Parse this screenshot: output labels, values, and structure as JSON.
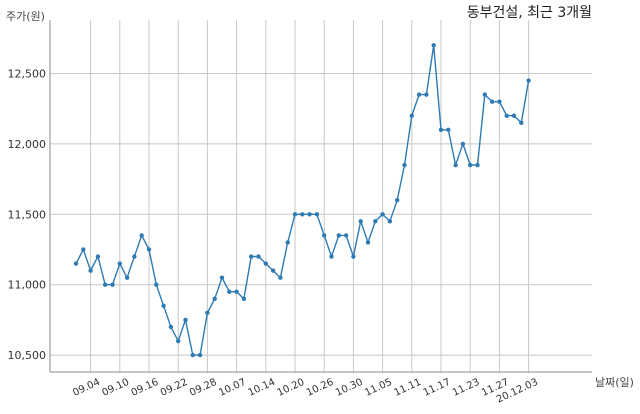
{
  "chart_data": {
    "type": "line",
    "title": "동부건설, 최근 3개월",
    "ylabel": "주가(원)",
    "xlabel": "날짜(일)",
    "ylim": [
      10380,
      12880
    ],
    "yticks": [
      10500,
      11000,
      11500,
      12000,
      12500
    ],
    "ytick_labels": [
      "10,500",
      "11,000",
      "11,500",
      "12,000",
      "12,500"
    ],
    "xtick_labels": [
      "09.04",
      "09.10",
      "09.16",
      "09.22",
      "09.28",
      "10.07",
      "10.14",
      "10.20",
      "10.26",
      "10.30",
      "11.05",
      "11.11",
      "11.17",
      "11.23",
      "11.27",
      "20.12.03"
    ],
    "xtick_index": [
      2,
      6,
      10,
      14,
      18,
      22,
      26,
      30,
      34,
      38,
      42,
      46,
      50,
      54,
      58,
      62
    ],
    "grid": true,
    "series": [
      {
        "color": "#2e7bb4",
        "values": [
          11150,
          11250,
          11100,
          11200,
          11000,
          11000,
          11150,
          11050,
          11200,
          11350,
          11250,
          11000,
          10850,
          10700,
          10600,
          10750,
          10500,
          10500,
          10800,
          10900,
          11050,
          10950,
          10950,
          10900,
          11200,
          11200,
          11150,
          11100,
          11050,
          11300,
          11500,
          11500,
          11500,
          11500,
          11350,
          11200,
          11350,
          11350,
          11200,
          11450,
          11300,
          11450,
          11500,
          11450,
          11600,
          11850,
          12200,
          12350,
          12350,
          12700,
          12100,
          12100,
          11850,
          12000,
          11850,
          11850,
          12350,
          12300,
          12300,
          12200,
          12200,
          12150,
          12450
        ]
      }
    ]
  }
}
